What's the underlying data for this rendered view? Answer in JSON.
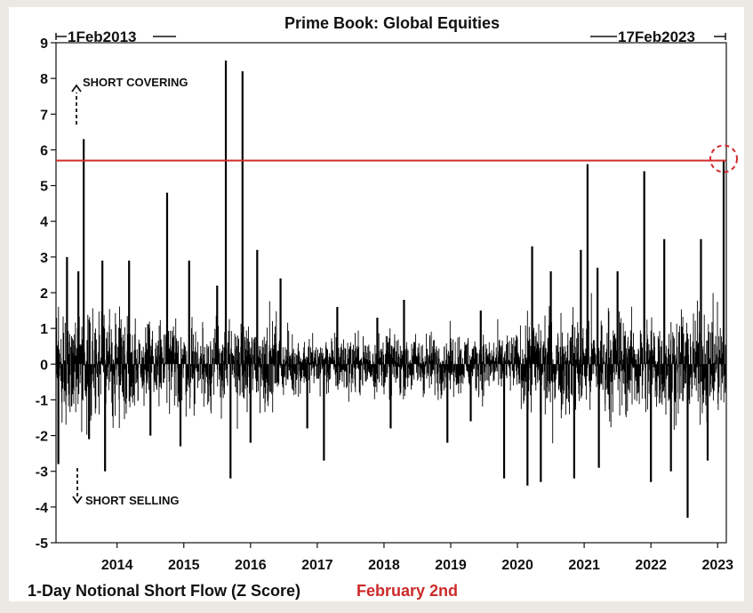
{
  "chart_data": {
    "type": "bar",
    "title": "Prime Book: Global Equities",
    "range_start": "1Feb2013",
    "range_end": "17Feb2023",
    "xlabel": "1-Day Notional Short Flow (Z Score)",
    "ylabel": "",
    "footnote_highlight": "February 2nd",
    "ylim": [
      -5,
      9
    ],
    "yticks": [
      9,
      8,
      7,
      6,
      5,
      4,
      3,
      2,
      1,
      0,
      -1,
      -2,
      -3,
      -4,
      -5
    ],
    "xlim": [
      2013.085,
      2023.13
    ],
    "xticks": [
      "2014",
      "2015",
      "2016",
      "2017",
      "2018",
      "2019",
      "2020",
      "2021",
      "2022",
      "2023"
    ],
    "reference_line": {
      "y": 5.7,
      "color": "#d42a2a"
    },
    "annotations": {
      "up": "SHORT COVERING",
      "down": "SHORT SELLING"
    },
    "grid": false,
    "legend": "none",
    "bar_color": "#000000",
    "spikes": [
      {
        "x": 2013.12,
        "value": -2.8
      },
      {
        "x": 2013.25,
        "value": 3.0
      },
      {
        "x": 2013.42,
        "value": 2.6
      },
      {
        "x": 2013.5,
        "value": 6.3
      },
      {
        "x": 2013.58,
        "value": -2.1
      },
      {
        "x": 2013.78,
        "value": 2.9
      },
      {
        "x": 2013.82,
        "value": -3.0
      },
      {
        "x": 2014.18,
        "value": 2.9
      },
      {
        "x": 2014.5,
        "value": -2.0
      },
      {
        "x": 2014.75,
        "value": 4.8
      },
      {
        "x": 2014.95,
        "value": -2.3
      },
      {
        "x": 2015.08,
        "value": 2.9
      },
      {
        "x": 2015.5,
        "value": 2.2
      },
      {
        "x": 2015.63,
        "value": 8.5
      },
      {
        "x": 2015.7,
        "value": -3.2
      },
      {
        "x": 2015.88,
        "value": 8.2
      },
      {
        "x": 2016.0,
        "value": -2.2
      },
      {
        "x": 2016.1,
        "value": 3.2
      },
      {
        "x": 2016.45,
        "value": 2.4
      },
      {
        "x": 2016.85,
        "value": -1.8
      },
      {
        "x": 2017.1,
        "value": -2.7
      },
      {
        "x": 2017.3,
        "value": 1.6
      },
      {
        "x": 2017.9,
        "value": 1.3
      },
      {
        "x": 2018.1,
        "value": -1.8
      },
      {
        "x": 2018.3,
        "value": 1.8
      },
      {
        "x": 2018.95,
        "value": -2.2
      },
      {
        "x": 2019.3,
        "value": -1.6
      },
      {
        "x": 2019.45,
        "value": 1.5
      },
      {
        "x": 2019.8,
        "value": -3.2
      },
      {
        "x": 2020.15,
        "value": -3.4
      },
      {
        "x": 2020.22,
        "value": 3.3
      },
      {
        "x": 2020.35,
        "value": -3.3
      },
      {
        "x": 2020.5,
        "value": 2.6
      },
      {
        "x": 2020.85,
        "value": -3.2
      },
      {
        "x": 2020.95,
        "value": 3.2
      },
      {
        "x": 2021.05,
        "value": 5.6
      },
      {
        "x": 2021.2,
        "value": 2.7
      },
      {
        "x": 2021.22,
        "value": -2.9
      },
      {
        "x": 2021.5,
        "value": 2.6
      },
      {
        "x": 2021.9,
        "value": 5.4
      },
      {
        "x": 2022.0,
        "value": -3.3
      },
      {
        "x": 2022.2,
        "value": 3.5
      },
      {
        "x": 2022.3,
        "value": -3.0
      },
      {
        "x": 2022.55,
        "value": -4.3
      },
      {
        "x": 2022.75,
        "value": 3.5
      },
      {
        "x": 2022.85,
        "value": -2.7
      },
      {
        "x": 2023.09,
        "value": 5.7
      }
    ]
  }
}
